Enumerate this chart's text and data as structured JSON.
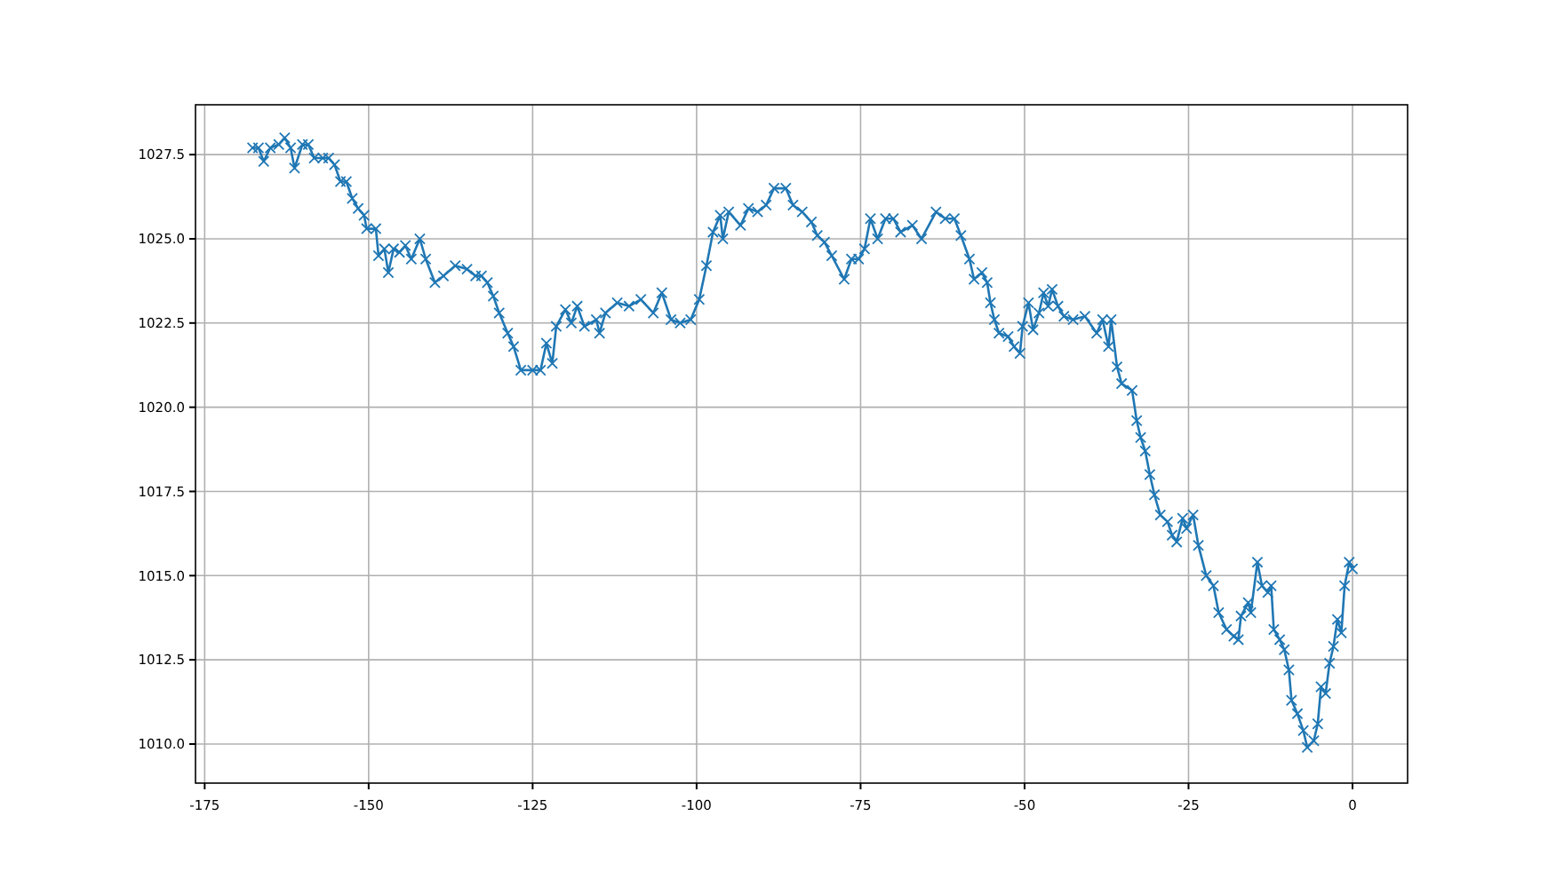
{
  "chart_data": {
    "type": "line",
    "xlim": [
      -176.4,
      8.4
    ],
    "ylim": [
      1008.84,
      1028.98
    ],
    "xticks": [
      -175,
      -150,
      -125,
      -100,
      -75,
      -50,
      -25,
      0
    ],
    "yticks": [
      {
        "value": 1010,
        "label": "1010.0"
      },
      {
        "value": 1012.5,
        "label": "1012.5"
      },
      {
        "value": 1015,
        "label": "1015.0"
      },
      {
        "value": 1017.5,
        "label": "1017.5"
      },
      {
        "value": 1020,
        "label": "1020.0"
      },
      {
        "value": 1022.5,
        "label": "1022.5"
      },
      {
        "value": 1025,
        "label": "1025.0"
      },
      {
        "value": 1027.5,
        "label": "1027.5"
      }
    ],
    "grid": true,
    "marker": "cross",
    "line_style": "solid",
    "series": [
      {
        "color": "#1f77b4",
        "x": [
          -167.7,
          -166.8,
          -166,
          -165,
          -163.7,
          -162.8,
          -161.9,
          -161.3,
          -160.1,
          -159.2,
          -158.3,
          -157,
          -156.1,
          -155.2,
          -154.3,
          -153.4,
          -152.5,
          -151.6,
          -150.7,
          -150.3,
          -148.9,
          -148.5,
          -147.6,
          -147,
          -146.2,
          -145.3,
          -144.4,
          -143.5,
          -142.2,
          -141.3,
          -139.9,
          -138.6,
          -136.8,
          -135,
          -133.7,
          -132.8,
          -131.9,
          -131,
          -130.1,
          -128.8,
          -127.9,
          -126.8,
          -125,
          -123.8,
          -122.9,
          -122,
          -121.4,
          -120,
          -119.1,
          -118.2,
          -117.1,
          -115.3,
          -114.8,
          -113.9,
          -112.1,
          -110.3,
          -108.5,
          -106.6,
          -105.3,
          -103.9,
          -102.5,
          -100.9,
          -99.6,
          -98.5,
          -97.5,
          -96.4,
          -96,
          -95.1,
          -93.3,
          -92.1,
          -90.7,
          -89.4,
          -88.2,
          -86.4,
          -85.3,
          -83.9,
          -82.5,
          -81.6,
          -80.5,
          -79.4,
          -77.5,
          -76.4,
          -75.3,
          -74.4,
          -73.5,
          -72.4,
          -71.2,
          -70,
          -68.9,
          -67.1,
          -65.7,
          -63.5,
          -62.1,
          -60.7,
          -59.7,
          -58.4,
          -57.7,
          -56.5,
          -55.7,
          -55.2,
          -54.6,
          -53.9,
          -52.5,
          -51.6,
          -50.7,
          -50.3,
          -49.4,
          -48.7,
          -47.8,
          -47.1,
          -46.4,
          -45.8,
          -44.9,
          -44,
          -42.6,
          -40.8,
          -39,
          -38.1,
          -37.2,
          -36.8,
          -35.9,
          -35.2,
          -33.6,
          -32.9,
          -32.3,
          -31.6,
          -30.9,
          -30.2,
          -29.3,
          -28.2,
          -27.5,
          -26.8,
          -25.9,
          -25.3,
          -24.3,
          -23.5,
          -22.3,
          -21.2,
          -20.4,
          -19.2,
          -18.1,
          -17.4,
          -17,
          -15.9,
          -15.5,
          -14.5,
          -13.8,
          -12.9,
          -12.4,
          -12,
          -11.1,
          -10.4,
          -9.7,
          -9.3,
          -8.4,
          -7.5,
          -6.9,
          -5.9,
          -5.3,
          -4.8,
          -4.1,
          -3.5,
          -2.9,
          -2.3,
          -1.7,
          -1.2,
          -0.5,
          0
        ],
        "values": [
          1027.7,
          1027.7,
          1027.3,
          1027.7,
          1027.8,
          1028.0,
          1027.7,
          1027.1,
          1027.8,
          1027.8,
          1027.4,
          1027.4,
          1027.4,
          1027.2,
          1026.7,
          1026.7,
          1026.2,
          1025.9,
          1025.7,
          1025.3,
          1025.3,
          1024.5,
          1024.7,
          1024.0,
          1024.7,
          1024.6,
          1024.8,
          1024.4,
          1025.0,
          1024.4,
          1023.7,
          1023.9,
          1024.2,
          1024.1,
          1023.9,
          1023.9,
          1023.7,
          1023.3,
          1022.8,
          1022.2,
          1021.8,
          1021.1,
          1021.1,
          1021.1,
          1021.9,
          1021.3,
          1022.4,
          1022.9,
          1022.5,
          1023.0,
          1022.4,
          1022.6,
          1022.2,
          1022.8,
          1023.1,
          1023.0,
          1023.2,
          1022.8,
          1023.4,
          1022.6,
          1022.5,
          1022.6,
          1023.2,
          1024.2,
          1025.2,
          1025.7,
          1025.0,
          1025.8,
          1025.4,
          1025.9,
          1025.8,
          1026.0,
          1026.5,
          1026.5,
          1026.0,
          1025.8,
          1025.5,
          1025.1,
          1024.9,
          1024.5,
          1023.8,
          1024.4,
          1024.4,
          1024.7,
          1025.6,
          1025.0,
          1025.6,
          1025.6,
          1025.2,
          1025.4,
          1025.0,
          1025.8,
          1025.6,
          1025.6,
          1025.1,
          1024.4,
          1023.8,
          1024.0,
          1023.7,
          1023.1,
          1022.6,
          1022.2,
          1022.1,
          1021.8,
          1021.6,
          1022.4,
          1023.1,
          1022.3,
          1022.8,
          1023.4,
          1023.0,
          1023.5,
          1023.0,
          1022.7,
          1022.6,
          1022.7,
          1022.2,
          1022.6,
          1021.8,
          1022.6,
          1021.2,
          1020.7,
          1020.5,
          1019.6,
          1019.1,
          1018.7,
          1018.0,
          1017.4,
          1016.8,
          1016.6,
          1016.2,
          1016.0,
          1016.7,
          1016.4,
          1016.8,
          1015.9,
          1015.0,
          1014.7,
          1013.9,
          1013.4,
          1013.2,
          1013.1,
          1013.8,
          1014.2,
          1013.9,
          1015.4,
          1014.7,
          1014.5,
          1014.7,
          1013.4,
          1013.1,
          1012.8,
          1012.2,
          1011.3,
          1010.9,
          1010.4,
          1009.9,
          1010.1,
          1010.6,
          1011.7,
          1011.5,
          1012.4,
          1012.9,
          1013.7,
          1013.3,
          1014.7,
          1015.4,
          1015.2
        ]
      }
    ]
  }
}
